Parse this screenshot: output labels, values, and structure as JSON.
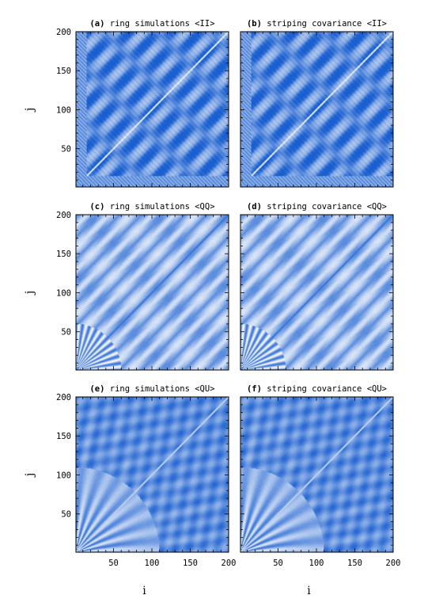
{
  "chart_data": {
    "type": "heatmap",
    "colormap": [
      "#ffffff",
      "#1a5fd0"
    ],
    "xlabel": "i",
    "ylabel": "j",
    "xlim": [
      1,
      200
    ],
    "ylim": [
      1,
      200
    ],
    "xticks": [
      50,
      100,
      150,
      200
    ],
    "yticks": [
      50,
      100,
      150,
      200
    ],
    "panels": [
      {
        "title_label": "(a)",
        "title_text": "ring simulations <II>",
        "component": "II",
        "source": "ring simulations"
      },
      {
        "title_label": "(b)",
        "title_text": "striping covariance <II>",
        "component": "II",
        "source": "striping covariance"
      },
      {
        "title_label": "(c)",
        "title_text": "ring simulations <QQ>",
        "component": "QQ",
        "source": "ring simulations"
      },
      {
        "title_label": "(d)",
        "title_text": "striping covariance <QQ>",
        "component": "QQ",
        "source": "striping covariance"
      },
      {
        "title_label": "(e)",
        "title_text": "ring simulations <QU>",
        "component": "QU",
        "source": "ring simulations"
      },
      {
        "title_label": "(f)",
        "title_text": "striping covariance <QU>",
        "component": "QU",
        "source": "striping covariance"
      }
    ]
  }
}
